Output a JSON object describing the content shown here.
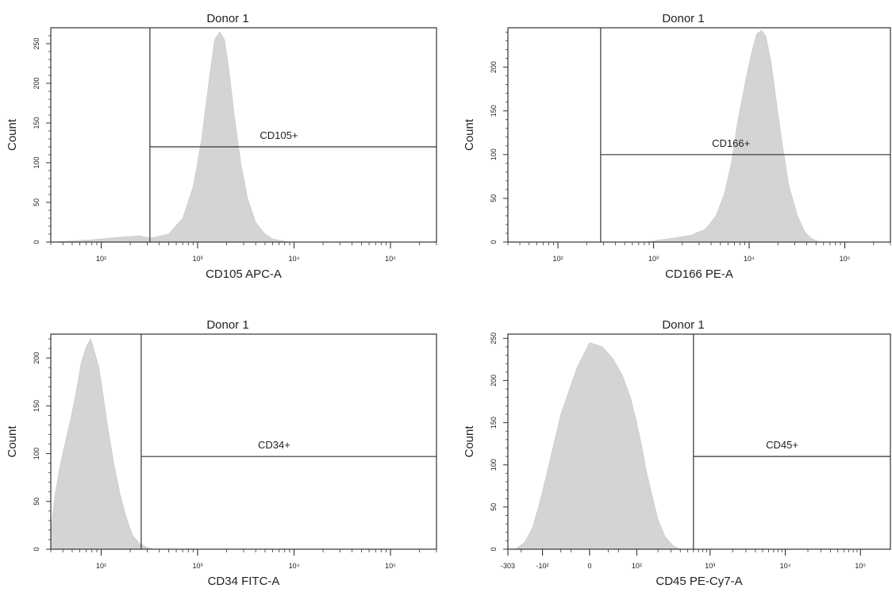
{
  "chart_data": [
    {
      "type": "area",
      "title": "Donor 1",
      "xlabel": "CD105 APC-A",
      "ylabel": "Count",
      "x_scale": "log",
      "xlim": [
        30,
        300000
      ],
      "ylim": [
        0,
        270
      ],
      "y_ticks": [
        "0",
        "50",
        "100",
        "150",
        "200",
        "250"
      ],
      "y_tick_values": [
        0,
        50,
        100,
        150,
        200,
        250
      ],
      "x_ticks": [
        "10²",
        "10³",
        "10⁴",
        "10⁵"
      ],
      "x_tick_values": [
        100,
        1000,
        10000,
        100000
      ],
      "gate": {
        "label": "CD105+",
        "x_start": 320,
        "count_level": 120
      },
      "series": [
        {
          "x": [
            30,
            80,
            150,
            250,
            320,
            500,
            700,
            900,
            1100,
            1300,
            1500,
            1700,
            1900,
            2100,
            2400,
            2800,
            3300,
            4000,
            5000,
            6000,
            8000,
            9000
          ],
          "y": [
            0,
            3,
            6,
            8,
            5,
            10,
            30,
            70,
            130,
            200,
            255,
            265,
            255,
            220,
            160,
            100,
            55,
            25,
            10,
            4,
            1,
            0
          ]
        }
      ]
    },
    {
      "type": "area",
      "title": "Donor 1",
      "xlabel": "CD166 PE-A",
      "ylabel": "Count",
      "x_scale": "log",
      "xlim": [
        30,
        300000
      ],
      "ylim": [
        0,
        245
      ],
      "y_ticks": [
        "0",
        "50",
        "100",
        "150",
        "200"
      ],
      "y_tick_values": [
        0,
        50,
        100,
        150,
        200
      ],
      "x_ticks": [
        "10²",
        "10³",
        "10⁴",
        "10⁵"
      ],
      "x_tick_values": [
        100,
        1000,
        10000,
        100000
      ],
      "gate": {
        "label": "CD166+",
        "x_start": 280,
        "count_level": 100
      },
      "series": [
        {
          "x": [
            800,
            1500,
            2500,
            3500,
            4500,
            5500,
            6500,
            7500,
            9000,
            10500,
            12000,
            13500,
            15000,
            17000,
            19000,
            22000,
            26000,
            32000,
            38000,
            45000,
            55000
          ],
          "y": [
            0,
            4,
            8,
            15,
            30,
            55,
            90,
            135,
            180,
            215,
            238,
            242,
            235,
            205,
            165,
            115,
            65,
            30,
            12,
            4,
            0
          ]
        }
      ]
    },
    {
      "type": "area",
      "title": "Donor 1",
      "xlabel": "CD34 FITC-A",
      "ylabel": "Count",
      "x_scale": "log",
      "xlim": [
        30,
        300000
      ],
      "ylim": [
        0,
        225
      ],
      "y_ticks": [
        "0",
        "50",
        "100",
        "150",
        "200"
      ],
      "y_tick_values": [
        0,
        50,
        100,
        150,
        200
      ],
      "x_ticks": [
        "10²",
        "10³",
        "10⁴",
        "10⁵"
      ],
      "x_tick_values": [
        100,
        1000,
        10000,
        100000
      ],
      "gate": {
        "label": "CD34+",
        "x_start": 260,
        "count_level": 97
      },
      "series": [
        {
          "x": [
            30,
            33,
            37,
            42,
            48,
            55,
            62,
            70,
            78,
            86,
            95,
            105,
            118,
            135,
            155,
            180,
            210,
            250,
            300,
            350
          ],
          "y": [
            20,
            55,
            85,
            110,
            135,
            165,
            195,
            212,
            220,
            205,
            190,
            160,
            125,
            90,
            60,
            35,
            15,
            6,
            2,
            0
          ]
        }
      ]
    },
    {
      "type": "area",
      "title": "Donor 1",
      "xlabel": "CD45 PE-Cy7-A",
      "ylabel": "Count",
      "x_scale": "biexponential",
      "xlim": [
        -303,
        250000
      ],
      "ylim": [
        0,
        255
      ],
      "y_ticks": [
        "0",
        "50",
        "100",
        "150",
        "200",
        "250"
      ],
      "y_tick_values": [
        0,
        50,
        100,
        150,
        200,
        250
      ],
      "x_ticks": [
        "-303",
        "-10²",
        "0",
        "10²",
        "10³",
        "10⁴",
        "10⁵"
      ],
      "x_tick_values": [
        -303,
        -100,
        0,
        100,
        1000,
        10000,
        100000
      ],
      "gate": {
        "label": "CD45+",
        "x_start": 600,
        "count_level": 110
      },
      "series": [
        {
          "x": [
            -240,
            -180,
            -140,
            -110,
            -80,
            -50,
            -20,
            0,
            20,
            40,
            60,
            80,
            100,
            120,
            140,
            170,
            200,
            250,
            320,
            400
          ],
          "y": [
            0,
            8,
            25,
            55,
            100,
            160,
            215,
            245,
            240,
            225,
            205,
            180,
            150,
            120,
            90,
            60,
            35,
            15,
            4,
            0
          ]
        }
      ]
    }
  ]
}
